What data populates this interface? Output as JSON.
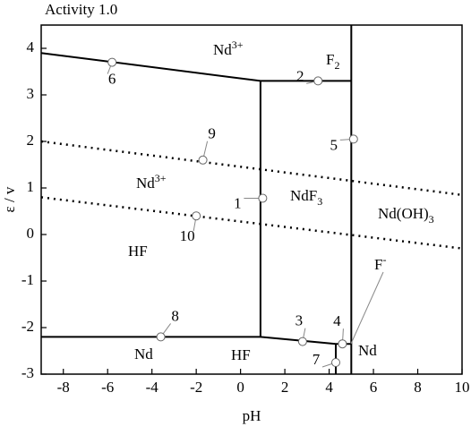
{
  "chart_data": {
    "type": "pourbaix",
    "title": "Activity 1.0",
    "x_label": "pH",
    "y_label": "ε / v",
    "xlim": [
      -9,
      10
    ],
    "ylim": [
      -3,
      4.5
    ],
    "xticks": [
      -8,
      -6,
      -4,
      -2,
      0,
      2,
      4,
      6,
      8,
      10
    ],
    "yticks": [
      -3,
      -2,
      -1,
      0,
      1,
      2,
      3,
      4
    ],
    "boundaries": [
      {
        "style": "solid",
        "x": [
          -9,
          0.9,
          5
        ],
        "y": [
          3.9,
          3.3,
          3.3
        ]
      },
      {
        "style": "solid",
        "x": [
          0.9,
          0.9
        ],
        "y": [
          3.3,
          -2.2
        ]
      },
      {
        "style": "solid",
        "x": [
          5,
          5
        ],
        "y": [
          4.5,
          -3
        ]
      },
      {
        "style": "solid",
        "x": [
          -9,
          0.9,
          4.3,
          5
        ],
        "y": [
          -2.2,
          -2.2,
          -2.35,
          -2.35
        ]
      },
      {
        "style": "solid",
        "x": [
          4.3,
          4.3
        ],
        "y": [
          -2.35,
          -3
        ]
      },
      {
        "style": "dotted",
        "x": [
          -9,
          10
        ],
        "y": [
          2.0,
          0.85
        ]
      },
      {
        "style": "dotted",
        "x": [
          -9,
          10
        ],
        "y": [
          0.8,
          -0.3
        ]
      }
    ],
    "regions": [
      {
        "text": "Nd",
        "sup": "3+"
      },
      {
        "text": "F",
        "sub": "2"
      },
      {
        "text": "Nd",
        "sup": "3+"
      },
      {
        "text": "NdF",
        "sub": "3"
      },
      {
        "text": "Nd(OH)",
        "sub": "3"
      },
      {
        "text": "HF"
      },
      {
        "text": "Nd"
      },
      {
        "text": "HF"
      },
      {
        "text": "Nd"
      },
      {
        "text": "F",
        "sup": "-"
      }
    ],
    "points": [
      {
        "label": "1",
        "x": 1.0,
        "y": 0.78
      },
      {
        "label": "2",
        "x": 3.5,
        "y": 3.3
      },
      {
        "label": "3",
        "x": 2.8,
        "y": -2.3
      },
      {
        "label": "4",
        "x": 4.6,
        "y": -2.35
      },
      {
        "label": "5",
        "x": 5.1,
        "y": 2.05
      },
      {
        "label": "6",
        "x": -5.8,
        "y": 3.7
      },
      {
        "label": "7",
        "x": 4.3,
        "y": -2.75
      },
      {
        "label": "8",
        "x": -3.6,
        "y": -2.2
      },
      {
        "label": "9",
        "x": -1.7,
        "y": 1.6
      },
      {
        "label": "10",
        "x": -2.0,
        "y": 0.4
      }
    ]
  }
}
